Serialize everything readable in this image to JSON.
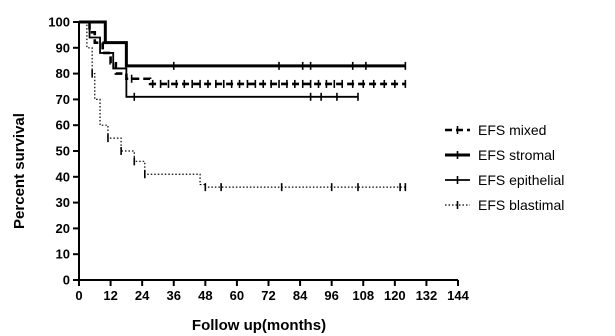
{
  "chart_data": {
    "type": "line",
    "subtype": "kaplan-meier step",
    "xlabel": "Follow up(months)",
    "ylabel": "Percent survival",
    "xlim": [
      0,
      144
    ],
    "ylim": [
      0,
      100
    ],
    "xticks": [
      0,
      12,
      24,
      36,
      48,
      60,
      72,
      84,
      96,
      108,
      120,
      132,
      144
    ],
    "yticks": [
      0,
      10,
      20,
      30,
      40,
      50,
      60,
      70,
      80,
      90,
      100
    ],
    "grid": false,
    "legend_position": "right",
    "series": [
      {
        "name": "EFS mixed",
        "style": "dashed",
        "color": "#000000",
        "steps": [
          [
            0,
            100
          ],
          [
            4,
            96
          ],
          [
            6,
            92
          ],
          [
            9,
            88
          ],
          [
            12,
            84
          ],
          [
            14,
            80
          ],
          [
            18,
            78
          ],
          [
            27,
            76
          ],
          [
            124,
            76
          ]
        ],
        "censored": [
          20,
          28,
          31,
          34,
          37,
          40,
          43,
          46,
          49,
          52,
          55,
          58,
          61,
          64,
          67,
          70,
          73,
          76,
          79,
          82,
          85,
          88,
          91,
          94,
          97,
          100,
          104,
          108,
          112,
          116,
          120,
          124
        ]
      },
      {
        "name": "EFS stromal",
        "style": "solid-thick",
        "color": "#000000",
        "steps": [
          [
            0,
            100
          ],
          [
            10,
            92
          ],
          [
            18,
            83
          ],
          [
            124,
            83
          ]
        ],
        "censored": [
          36,
          76,
          85,
          88,
          104,
          109,
          124
        ]
      },
      {
        "name": "EFS epithelial",
        "style": "solid",
        "color": "#000000",
        "steps": [
          [
            0,
            100
          ],
          [
            4,
            94
          ],
          [
            8,
            88
          ],
          [
            13,
            82
          ],
          [
            18,
            71
          ],
          [
            106,
            71
          ]
        ],
        "censored": [
          21,
          88,
          92,
          98,
          106
        ]
      },
      {
        "name": "EFS blastimal",
        "style": "dotted",
        "color": "#000000",
        "steps": [
          [
            0,
            100
          ],
          [
            3,
            90
          ],
          [
            5,
            80
          ],
          [
            6,
            70
          ],
          [
            8,
            60
          ],
          [
            11,
            55
          ],
          [
            16,
            50
          ],
          [
            21,
            46
          ],
          [
            25,
            41
          ],
          [
            46,
            37
          ],
          [
            48,
            36
          ],
          [
            124,
            36
          ]
        ],
        "censored": [
          5,
          11,
          16,
          21,
          25,
          48,
          54,
          77,
          96,
          106,
          122,
          124
        ]
      }
    ]
  }
}
